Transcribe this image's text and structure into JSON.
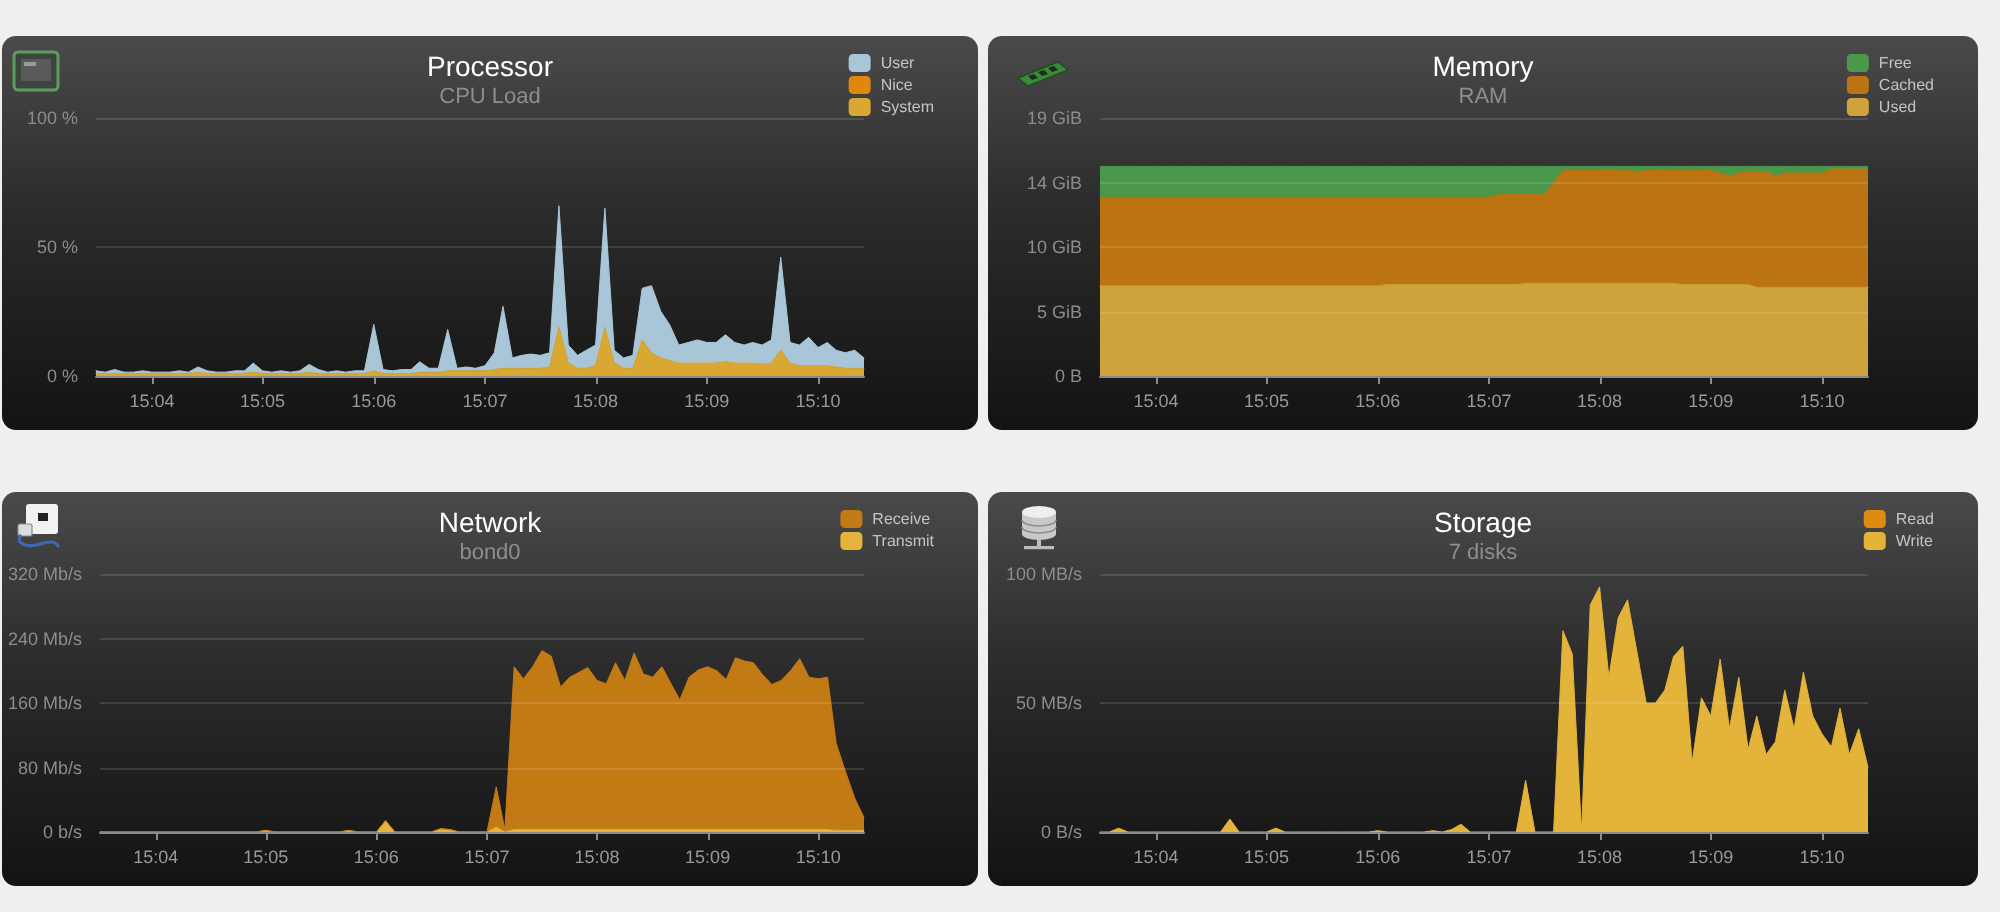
{
  "chart_data": [
    {
      "type": "area",
      "title": "Processor",
      "subtitle": "CPU Load",
      "stacked": true,
      "legend": "top right",
      "grid": "y",
      "marker": "none",
      "x": [
        15.0583,
        15.0597,
        15.0611,
        15.0625,
        15.0639,
        15.0653,
        15.0667,
        15.0681,
        15.0694,
        15.0708,
        15.0722,
        15.0736,
        15.075,
        15.0764,
        15.0778,
        15.0792,
        15.0806,
        15.0819,
        15.0833,
        15.0847,
        15.0861,
        15.0875,
        15.0889,
        15.0903,
        15.0917,
        15.0931,
        15.0944,
        15.0958,
        15.0972,
        15.0986,
        15.1,
        15.1014,
        15.1028,
        15.1042,
        15.1056,
        15.1069,
        15.1083,
        15.1097,
        15.1111,
        15.1125,
        15.1139,
        15.1153,
        15.1167,
        15.1181,
        15.1194,
        15.1208,
        15.1222,
        15.1236,
        15.125,
        15.1264,
        15.1278,
        15.1292,
        15.1306,
        15.1319,
        15.1333,
        15.1347,
        15.1361,
        15.1375,
        15.1389,
        15.1403,
        15.1417,
        15.1431,
        15.1444,
        15.1458,
        15.1472,
        15.1486,
        15.15,
        15.1514,
        15.1528,
        15.1542,
        15.1556,
        15.1569,
        15.1583,
        15.1597,
        15.1611,
        15.1625,
        15.1639,
        15.1653,
        15.1667,
        15.1681,
        15.1694,
        15.1708,
        15.1722,
        15.1736
      ],
      "xlim": [
        15.0583,
        15.1736
      ],
      "xticks": [
        {
          "value": 15.0667,
          "label": "15:04"
        },
        {
          "value": 15.0833,
          "label": "15:05"
        },
        {
          "value": 15.1,
          "label": "15:06"
        },
        {
          "value": 15.1167,
          "label": "15:07"
        },
        {
          "value": 15.1333,
          "label": "15:08"
        },
        {
          "value": 15.15,
          "label": "15:09"
        },
        {
          "value": 15.1667,
          "label": "15:10"
        }
      ],
      "ylim": [
        0,
        100
      ],
      "yticks": [
        {
          "value": 0,
          "label": "0 %"
        },
        {
          "value": 50,
          "label": "50 %"
        },
        {
          "value": 100,
          "label": "100 %"
        }
      ],
      "series": [
        {
          "name": "System",
          "color": "#d8a832",
          "values": [
            1,
            1,
            1,
            1,
            1,
            1,
            1,
            1,
            1,
            1,
            1,
            1.5,
            1,
            1,
            1,
            1,
            1,
            1.5,
            1,
            1,
            1,
            1,
            1,
            1.5,
            1,
            1,
            1,
            1,
            1,
            1,
            2,
            1,
            1,
            1,
            1,
            1.5,
            1.5,
            1.5,
            2,
            2,
            2,
            2,
            2,
            2.5,
            3,
            3,
            3,
            3,
            3,
            3.5,
            19,
            5,
            3,
            3,
            4,
            19,
            5,
            3,
            3,
            14,
            9,
            7,
            6,
            5,
            5,
            5,
            5,
            5,
            5.5,
            5,
            5,
            5,
            4.5,
            5,
            10,
            5,
            4,
            4,
            4,
            4,
            3.5,
            3,
            3,
            3
          ]
        },
        {
          "name": "Nice",
          "color": "#e0880e",
          "values": [
            null,
            null,
            null,
            null,
            null,
            null,
            null,
            null,
            null,
            null,
            null,
            null,
            null,
            null,
            null,
            null,
            null,
            null,
            null,
            null,
            null,
            null,
            null,
            null,
            null,
            null,
            null,
            null,
            null,
            null,
            null,
            null,
            null,
            null,
            null,
            null,
            null,
            null,
            null,
            null,
            null,
            null,
            null,
            null,
            null,
            null,
            null,
            null,
            null,
            null,
            null,
            null,
            null,
            null,
            null,
            null,
            null,
            null,
            null,
            null,
            null,
            null,
            null,
            null,
            null,
            null,
            null,
            null,
            null,
            null,
            null,
            null,
            null,
            null,
            null,
            null,
            null,
            null,
            null,
            null,
            null,
            null,
            null,
            null
          ]
        },
        {
          "name": "User",
          "color": "#a9c6d8",
          "values": [
            1,
            0.5,
            1.5,
            0.5,
            0.5,
            1,
            0.5,
            0.5,
            0.5,
            1,
            0.5,
            2,
            1,
            0.5,
            0.5,
            1,
            1,
            3.5,
            1,
            0.5,
            1,
            0.5,
            1,
            3,
            1.5,
            0.5,
            1,
            0.5,
            1,
            1,
            18,
            1.5,
            1,
            1.5,
            1.5,
            4,
            1.5,
            1.5,
            16,
            1,
            1.5,
            1,
            2,
            6.5,
            24,
            4,
            5,
            5.5,
            5,
            5.5,
            47,
            7,
            5,
            7,
            8,
            46,
            5,
            4,
            5,
            20,
            26,
            18,
            14,
            7,
            8,
            9,
            8,
            8,
            10.5,
            8,
            7,
            8,
            7.5,
            9,
            36,
            8,
            8,
            11,
            7,
            9,
            6.5,
            6,
            7,
            4
          ]
        }
      ]
    },
    {
      "type": "area",
      "title": "Memory",
      "subtitle": "RAM",
      "stacked": true,
      "legend": "top right",
      "grid": "y",
      "marker": "none",
      "x": [
        15.0583,
        15.0597,
        15.0611,
        15.0625,
        15.0639,
        15.0653,
        15.0667,
        15.0681,
        15.0694,
        15.0708,
        15.0722,
        15.0736,
        15.075,
        15.0764,
        15.0778,
        15.0792,
        15.0806,
        15.0819,
        15.0833,
        15.0847,
        15.0861,
        15.0875,
        15.0889,
        15.0903,
        15.0917,
        15.0931,
        15.0944,
        15.0958,
        15.0972,
        15.0986,
        15.1,
        15.1014,
        15.1028,
        15.1042,
        15.1056,
        15.1069,
        15.1083,
        15.1097,
        15.1111,
        15.1125,
        15.1139,
        15.1153,
        15.1167,
        15.1181,
        15.1194,
        15.1208,
        15.1222,
        15.1236,
        15.125,
        15.1264,
        15.1278,
        15.1292,
        15.1306,
        15.1319,
        15.1333,
        15.1347,
        15.1361,
        15.1375,
        15.1389,
        15.1403,
        15.1417,
        15.1431,
        15.1444,
        15.1458,
        15.1472,
        15.1486,
        15.15,
        15.1514,
        15.1528,
        15.1542,
        15.1556,
        15.1569,
        15.1583,
        15.1597,
        15.1611,
        15.1625,
        15.1639,
        15.1653,
        15.1667,
        15.1681,
        15.1694,
        15.1708,
        15.1722,
        15.1736
      ],
      "xlim": [
        15.0583,
        15.1736
      ],
      "xticks": [
        {
          "value": 15.0667,
          "label": "15:04"
        },
        {
          "value": 15.0833,
          "label": "15:05"
        },
        {
          "value": 15.1,
          "label": "15:06"
        },
        {
          "value": 15.1167,
          "label": "15:07"
        },
        {
          "value": 15.1333,
          "label": "15:08"
        },
        {
          "value": 15.15,
          "label": "15:09"
        },
        {
          "value": 15.1667,
          "label": "15:10"
        }
      ],
      "ylim": [
        0,
        19.2
      ],
      "yticks": [
        {
          "value": 0,
          "label": "0 B"
        },
        {
          "value": 4.8,
          "label": "5 GiB"
        },
        {
          "value": 9.6,
          "label": "10 GiB"
        },
        {
          "value": 14.4,
          "label": "14 GiB"
        },
        {
          "value": 19.2,
          "label": "19 GiB"
        }
      ],
      "series": [
        {
          "name": "Used",
          "color": "#cfa33c",
          "values": [
            6.7,
            6.7,
            6.7,
            6.7,
            6.7,
            6.7,
            6.7,
            6.7,
            6.7,
            6.7,
            6.7,
            6.7,
            6.7,
            6.7,
            6.7,
            6.7,
            6.7,
            6.7,
            6.7,
            6.7,
            6.7,
            6.7,
            6.7,
            6.7,
            6.7,
            6.7,
            6.7,
            6.7,
            6.7,
            6.7,
            6.7,
            6.8,
            6.8,
            6.8,
            6.8,
            6.8,
            6.8,
            6.8,
            6.8,
            6.8,
            6.8,
            6.8,
            6.8,
            6.8,
            6.8,
            6.8,
            6.9,
            6.9,
            6.9,
            6.9,
            6.9,
            6.9,
            6.9,
            6.9,
            6.9,
            6.9,
            6.9,
            6.9,
            6.9,
            6.9,
            6.9,
            6.9,
            6.9,
            6.8,
            6.8,
            6.8,
            6.8,
            6.8,
            6.8,
            6.8,
            6.8,
            6.6,
            6.6,
            6.6,
            6.6,
            6.6,
            6.6,
            6.6,
            6.6,
            6.6,
            6.6,
            6.6,
            6.6,
            6.6
          ]
        },
        {
          "name": "Cached",
          "color": "#bc7412",
          "values": [
            6.6,
            6.6,
            6.6,
            6.6,
            6.6,
            6.6,
            6.6,
            6.6,
            6.6,
            6.6,
            6.6,
            6.6,
            6.6,
            6.6,
            6.6,
            6.6,
            6.6,
            6.6,
            6.6,
            6.6,
            6.6,
            6.6,
            6.6,
            6.6,
            6.6,
            6.6,
            6.6,
            6.6,
            6.6,
            6.6,
            6.6,
            6.5,
            6.5,
            6.5,
            6.5,
            6.5,
            6.5,
            6.5,
            6.5,
            6.5,
            6.5,
            6.5,
            6.5,
            6.7,
            6.7,
            6.7,
            6.6,
            6.6,
            6.6,
            7.5,
            8.4,
            8.4,
            8.4,
            8.4,
            8.4,
            8.4,
            8.4,
            8.4,
            8.3,
            8.4,
            8.4,
            8.4,
            8.4,
            8.5,
            8.5,
            8.5,
            8.5,
            8.3,
            8.1,
            8.3,
            8.4,
            8.6,
            8.6,
            8.3,
            8.5,
            8.5,
            8.5,
            8.5,
            8.5,
            8.8,
            8.8,
            8.8,
            8.8,
            8.8
          ]
        },
        {
          "name": "Free",
          "color": "#4b984c",
          "values": [
            2.3,
            2.3,
            2.3,
            2.3,
            2.3,
            2.3,
            2.3,
            2.3,
            2.3,
            2.3,
            2.3,
            2.3,
            2.3,
            2.3,
            2.3,
            2.3,
            2.3,
            2.3,
            2.3,
            2.3,
            2.3,
            2.3,
            2.3,
            2.3,
            2.3,
            2.3,
            2.3,
            2.3,
            2.3,
            2.3,
            2.3,
            2.3,
            2.3,
            2.3,
            2.3,
            2.3,
            2.3,
            2.3,
            2.3,
            2.3,
            2.3,
            2.3,
            2.3,
            2.1,
            2.1,
            2.1,
            2.1,
            2.1,
            2.1,
            1.2,
            0.3,
            0.3,
            0.3,
            0.3,
            0.3,
            0.3,
            0.3,
            0.3,
            0.4,
            0.3,
            0.3,
            0.3,
            0.3,
            0.3,
            0.3,
            0.3,
            0.3,
            0.5,
            0.7,
            0.5,
            0.4,
            0.4,
            0.4,
            0.7,
            0.5,
            0.5,
            0.5,
            0.5,
            0.5,
            0.2,
            0.2,
            0.2,
            0.2,
            0.2
          ]
        }
      ]
    },
    {
      "type": "area",
      "title": "Network",
      "subtitle": "bond0",
      "stacked": true,
      "legend": "top right",
      "grid": "y",
      "marker": "none",
      "x": [
        15.0583,
        15.0597,
        15.0611,
        15.0625,
        15.0639,
        15.0653,
        15.0667,
        15.0681,
        15.0694,
        15.0708,
        15.0722,
        15.0736,
        15.075,
        15.0764,
        15.0778,
        15.0792,
        15.0806,
        15.0819,
        15.0833,
        15.0847,
        15.0861,
        15.0875,
        15.0889,
        15.0903,
        15.0917,
        15.0931,
        15.0944,
        15.0958,
        15.0972,
        15.0986,
        15.1,
        15.1014,
        15.1028,
        15.1042,
        15.1056,
        15.1069,
        15.1083,
        15.1097,
        15.1111,
        15.1125,
        15.1139,
        15.1153,
        15.1167,
        15.1181,
        15.1194,
        15.1208,
        15.1222,
        15.1236,
        15.125,
        15.1264,
        15.1278,
        15.1292,
        15.1306,
        15.1319,
        15.1333,
        15.1347,
        15.1361,
        15.1375,
        15.1389,
        15.1403,
        15.1417,
        15.1431,
        15.1444,
        15.1458,
        15.1472,
        15.1486,
        15.15,
        15.1514,
        15.1528,
        15.1542,
        15.1556,
        15.1569,
        15.1583,
        15.1597,
        15.1611,
        15.1625,
        15.1639,
        15.1653,
        15.1667,
        15.1681,
        15.1694,
        15.1708,
        15.1722,
        15.1736
      ],
      "xlim": [
        15.0583,
        15.1736
      ],
      "xticks": [
        {
          "value": 15.0667,
          "label": "15:04"
        },
        {
          "value": 15.0833,
          "label": "15:05"
        },
        {
          "value": 15.1,
          "label": "15:06"
        },
        {
          "value": 15.1167,
          "label": "15:07"
        },
        {
          "value": 15.1333,
          "label": "15:08"
        },
        {
          "value": 15.15,
          "label": "15:09"
        },
        {
          "value": 15.1667,
          "label": "15:10"
        }
      ],
      "ylim": [
        0,
        320
      ],
      "yticks": [
        {
          "value": 0,
          "label": "0 b/s"
        },
        {
          "value": 80,
          "label": "80 Mb/s"
        },
        {
          "value": 160,
          "label": "160 Mb/s"
        },
        {
          "value": 240,
          "label": "240 Mb/s"
        },
        {
          "value": 320,
          "label": "320 Mb/s"
        }
      ],
      "series": [
        {
          "name": "Transmit",
          "color": "#e6b43a",
          "values": [
            0,
            0,
            0,
            0,
            0,
            0,
            0,
            0,
            0,
            0,
            0,
            0,
            0,
            0,
            0,
            0,
            0,
            0,
            2,
            0,
            0,
            0,
            0,
            0,
            0,
            0,
            0,
            2,
            0,
            0,
            0,
            14,
            0,
            0,
            0,
            0,
            0,
            4,
            3,
            0,
            0,
            0,
            0,
            6,
            0,
            3,
            3,
            3,
            3,
            3,
            3,
            3,
            3,
            3,
            3,
            3,
            3,
            3,
            3,
            3,
            3,
            3,
            3,
            3,
            3,
            3,
            3,
            3,
            3,
            3,
            3,
            3,
            3,
            3,
            3,
            3,
            3,
            3,
            3,
            3,
            2,
            2,
            2,
            2
          ]
        },
        {
          "name": "Receive",
          "color": "#c27a14",
          "values": [
            0,
            0,
            0,
            0,
            0,
            0,
            0,
            0,
            0,
            0,
            0,
            0,
            0,
            0,
            0,
            0,
            0,
            0,
            0,
            0,
            0,
            0,
            0,
            0,
            0,
            0,
            0,
            0,
            0,
            0,
            0,
            0,
            0,
            0,
            0,
            0,
            0,
            0,
            0,
            0,
            0,
            0,
            0,
            50,
            3,
            202,
            187,
            202,
            222,
            215,
            177,
            189,
            195,
            201,
            185,
            181,
            207,
            185,
            219,
            193,
            189,
            202,
            182,
            161,
            189,
            198,
            202,
            197,
            186,
            213,
            209,
            207,
            192,
            180,
            185,
            197,
            212,
            189,
            187,
            189,
            108,
            73,
            40,
            16
          ]
        }
      ]
    },
    {
      "type": "area",
      "title": "Storage",
      "subtitle": "7 disks",
      "stacked": true,
      "legend": "top right",
      "grid": "y",
      "marker": "none",
      "x": [
        15.0583,
        15.0597,
        15.0611,
        15.0625,
        15.0639,
        15.0653,
        15.0667,
        15.0681,
        15.0694,
        15.0708,
        15.0722,
        15.0736,
        15.075,
        15.0764,
        15.0778,
        15.0792,
        15.0806,
        15.0819,
        15.0833,
        15.0847,
        15.0861,
        15.0875,
        15.0889,
        15.0903,
        15.0917,
        15.0931,
        15.0944,
        15.0958,
        15.0972,
        15.0986,
        15.1,
        15.1014,
        15.1028,
        15.1042,
        15.1056,
        15.1069,
        15.1083,
        15.1097,
        15.1111,
        15.1125,
        15.1139,
        15.1153,
        15.1167,
        15.1181,
        15.1194,
        15.1208,
        15.1222,
        15.1236,
        15.125,
        15.1264,
        15.1278,
        15.1292,
        15.1306,
        15.1319,
        15.1333,
        15.1347,
        15.1361,
        15.1375,
        15.1389,
        15.1403,
        15.1417,
        15.1431,
        15.1444,
        15.1458,
        15.1472,
        15.1486,
        15.15,
        15.1514,
        15.1528,
        15.1542,
        15.1556,
        15.1569,
        15.1583,
        15.1597,
        15.1611,
        15.1625,
        15.1639,
        15.1653,
        15.1667,
        15.1681,
        15.1694,
        15.1708,
        15.1722,
        15.1736
      ],
      "xlim": [
        15.0583,
        15.1736
      ],
      "xticks": [
        {
          "value": 15.0667,
          "label": "15:04"
        },
        {
          "value": 15.0833,
          "label": "15:05"
        },
        {
          "value": 15.1,
          "label": "15:06"
        },
        {
          "value": 15.1167,
          "label": "15:07"
        },
        {
          "value": 15.1333,
          "label": "15:08"
        },
        {
          "value": 15.15,
          "label": "15:09"
        },
        {
          "value": 15.1667,
          "label": "15:10"
        }
      ],
      "ylim": [
        0,
        100
      ],
      "yticks": [
        {
          "value": 0,
          "label": "0 B/s"
        },
        {
          "value": 50,
          "label": "50 MB/s"
        },
        {
          "value": 100,
          "label": "100 MB/s"
        }
      ],
      "series": [
        {
          "name": "Write",
          "color": "#e3b33a",
          "values": [
            0,
            0,
            1.5,
            0,
            0,
            0,
            0,
            0,
            0,
            0,
            0,
            0,
            0,
            0,
            5,
            0,
            0,
            0,
            0,
            1.5,
            0,
            0,
            0,
            0,
            0,
            0,
            0,
            0,
            0,
            0,
            0.5,
            0,
            0,
            0,
            0,
            0,
            0.5,
            0,
            1,
            3,
            0,
            0,
            0,
            0,
            0,
            0,
            20,
            0,
            0,
            0,
            78,
            69,
            0,
            88,
            95,
            60,
            83,
            90,
            70,
            50,
            50,
            55,
            68,
            72,
            27,
            52,
            45,
            67,
            40,
            60,
            32,
            45,
            30,
            35,
            55,
            40,
            62,
            45,
            38,
            33,
            48,
            30,
            40,
            25
          ]
        },
        {
          "name": "Read",
          "color": "#e08a10",
          "values": [
            null,
            null,
            null,
            null,
            null,
            null,
            null,
            null,
            null,
            null,
            null,
            null,
            null,
            null,
            null,
            null,
            null,
            null,
            null,
            null,
            null,
            null,
            null,
            null,
            null,
            null,
            null,
            null,
            null,
            null,
            null,
            null,
            null,
            null,
            null,
            null,
            null,
            null,
            null,
            null,
            null,
            null,
            null,
            null,
            null,
            null,
            null,
            null,
            null,
            null,
            null,
            null,
            null,
            null,
            null,
            null,
            null,
            null,
            null,
            null,
            null,
            null,
            null,
            null,
            null,
            null,
            null,
            null,
            null,
            null,
            null,
            null,
            null,
            null,
            null,
            null,
            null,
            null,
            null,
            null,
            null,
            null,
            null,
            null
          ]
        }
      ]
    }
  ]
}
